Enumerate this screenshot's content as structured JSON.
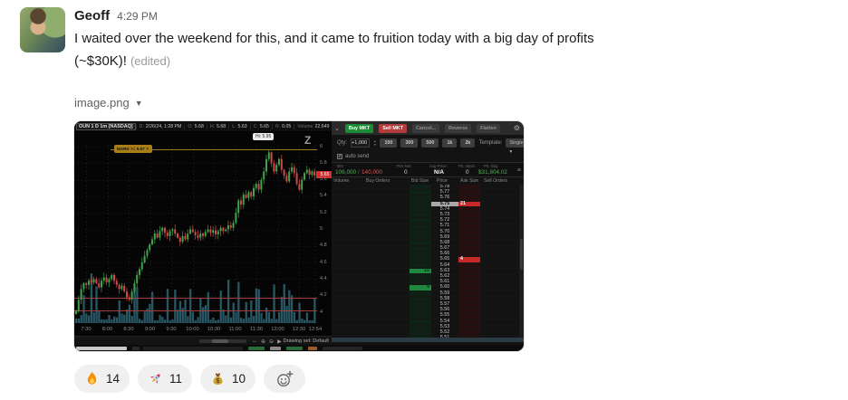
{
  "message": {
    "author": "Geoff",
    "timestamp": "4:29 PM",
    "line1": "I waited over the weekend for this, and it came to fruition today with a big day of profits",
    "line2": "(~$30K)!",
    "edited_label": "(edited)",
    "file_name": "image.png"
  },
  "reactions": {
    "items": [
      {
        "name": "fire",
        "emoji": "🔥",
        "count": "14"
      },
      {
        "name": "rocket",
        "emoji": "🚀",
        "count": "11"
      },
      {
        "name": "moneybag",
        "emoji": "💰",
        "count": "10"
      }
    ]
  },
  "chart_data": {
    "type": "candlestick+volume",
    "title": "OUN 1 D 1m [NASDAQ]",
    "header_fields": [
      {
        "label": "D:",
        "value": "2/26/24, 1:28 PM"
      },
      {
        "label": "O:",
        "value": "5.68"
      },
      {
        "label": "H:",
        "value": "5.68"
      },
      {
        "label": "L:",
        "value": "5.63"
      },
      {
        "label": "C:",
        "value": "5.65"
      },
      {
        "label": "R:",
        "value": "0.05"
      },
      {
        "label": "Volume",
        "value": "22,649"
      }
    ],
    "watermark": "Z",
    "price_axis": {
      "min": 4,
      "max": 6,
      "ticks": [
        "6",
        "5.8",
        "5.6",
        "5.4",
        "5.2",
        "5",
        "4.8",
        "4.6",
        "4.4",
        "4.2",
        "4"
      ]
    },
    "x_labels": [
      "7:30",
      "8:00",
      "8:30",
      "9:00",
      "9:30",
      "10:00",
      "10:30",
      "11:00",
      "11:30",
      "12:00",
      "12:30",
      "12:54"
    ],
    "closes": [
      4.02,
      4.15,
      4.28,
      4.35,
      4.33,
      4.38,
      4.36,
      4.4,
      4.35,
      4.3,
      4.38,
      4.42,
      4.36,
      4.4,
      4.45,
      4.38,
      4.33,
      4.28,
      4.32,
      4.25,
      4.18,
      4.15,
      4.25,
      4.35,
      4.45,
      4.52,
      4.6,
      4.68,
      4.75,
      4.82,
      4.88,
      4.95,
      4.9,
      4.98,
      5.02,
      4.96,
      4.92,
      4.98,
      5.0,
      4.95,
      4.9,
      4.85,
      4.92,
      4.88,
      4.95,
      5.0,
      4.97,
      4.93,
      4.9,
      4.95,
      4.92,
      4.97,
      5.0,
      4.96,
      4.99,
      4.94,
      4.98,
      5.02,
      4.98,
      5.0,
      5.05,
      5.02,
      5.08,
      5.2,
      5.35,
      5.3,
      5.42,
      5.38,
      5.45,
      5.4,
      5.5,
      5.55,
      5.48,
      5.6,
      5.7,
      5.85,
      5.93,
      5.8,
      5.7,
      5.78,
      5.85,
      5.72,
      5.65,
      5.58,
      5.7,
      5.75,
      5.68,
      5.55,
      5.48,
      5.6,
      5.68,
      5.72,
      5.66,
      5.7,
      5.65
    ],
    "annotations": {
      "mark_price": 5.97,
      "mark_label": "MARK >= 5.97 ✕",
      "hi_label": "Hi: 5.95",
      "last_price_tag": "5.65",
      "support_lines": [
        4.18,
        4.02
      ]
    },
    "toolbar": {
      "icons": [
        "pan-icon",
        "zoom-in-icon",
        "zoom-out-icon",
        "cursor-icon"
      ],
      "label": "Drawing set: Default"
    },
    "colors": {
      "up": "#3fa34d",
      "down": "#d14848",
      "volume": "rgba(46,102,117,0.85)",
      "mark": "#9c7a1d",
      "support": "#a04040",
      "last_tag": "#d22f2f"
    }
  },
  "trading_dom": {
    "buttons": [
      "Buy MKT",
      "Sell MKT",
      "Cancel...",
      "Reverse",
      "Flatten"
    ],
    "qty_label": "Qty:",
    "qty_value": "+1,000",
    "presets": [
      "100",
      "300",
      "500",
      "1k",
      "2k"
    ],
    "template_label": "Template:",
    "template_value": "Single",
    "auto_send_label": "auto send",
    "summary": {
      "bs_label": "B/S",
      "bought": "106,000",
      "sold": "140,000",
      "pos_net_label": "Pos Net",
      "pos_net": "0",
      "avg_label": "Avg Price",
      "avg": "N/A",
      "pl_open_label": "P/L Open",
      "pl_open": "0",
      "pl_day_label": "P/L Day",
      "pl_day": "$31,804.02"
    },
    "columns": [
      "Volume",
      "Buy Orders",
      "Bid Size",
      "Price",
      "Ask Size",
      "Sell Orders"
    ],
    "ladder": [
      {
        "price": "5.78"
      },
      {
        "price": "5.77"
      },
      {
        "price": "5.76"
      },
      {
        "price": "5.75",
        "ask": "21",
        "hl": true
      },
      {
        "price": "5.74"
      },
      {
        "price": "5.73"
      },
      {
        "price": "5.72"
      },
      {
        "price": "5.71"
      },
      {
        "price": "5.70"
      },
      {
        "price": "5.69"
      },
      {
        "price": "5.68"
      },
      {
        "price": "5.67"
      },
      {
        "price": "5.66"
      },
      {
        "price": "5.65",
        "ask": "4"
      },
      {
        "price": "5.64"
      },
      {
        "price": "5.63",
        "bid": "19"
      },
      {
        "price": "5.62"
      },
      {
        "price": "5.61"
      },
      {
        "price": "5.60",
        "bid": "4"
      },
      {
        "price": "5.59"
      },
      {
        "price": "5.58"
      },
      {
        "price": "5.57"
      },
      {
        "price": "5.56"
      },
      {
        "price": "5.55"
      },
      {
        "price": "5.54"
      },
      {
        "price": "5.53"
      },
      {
        "price": "5.52"
      },
      {
        "price": "5.51"
      }
    ]
  }
}
